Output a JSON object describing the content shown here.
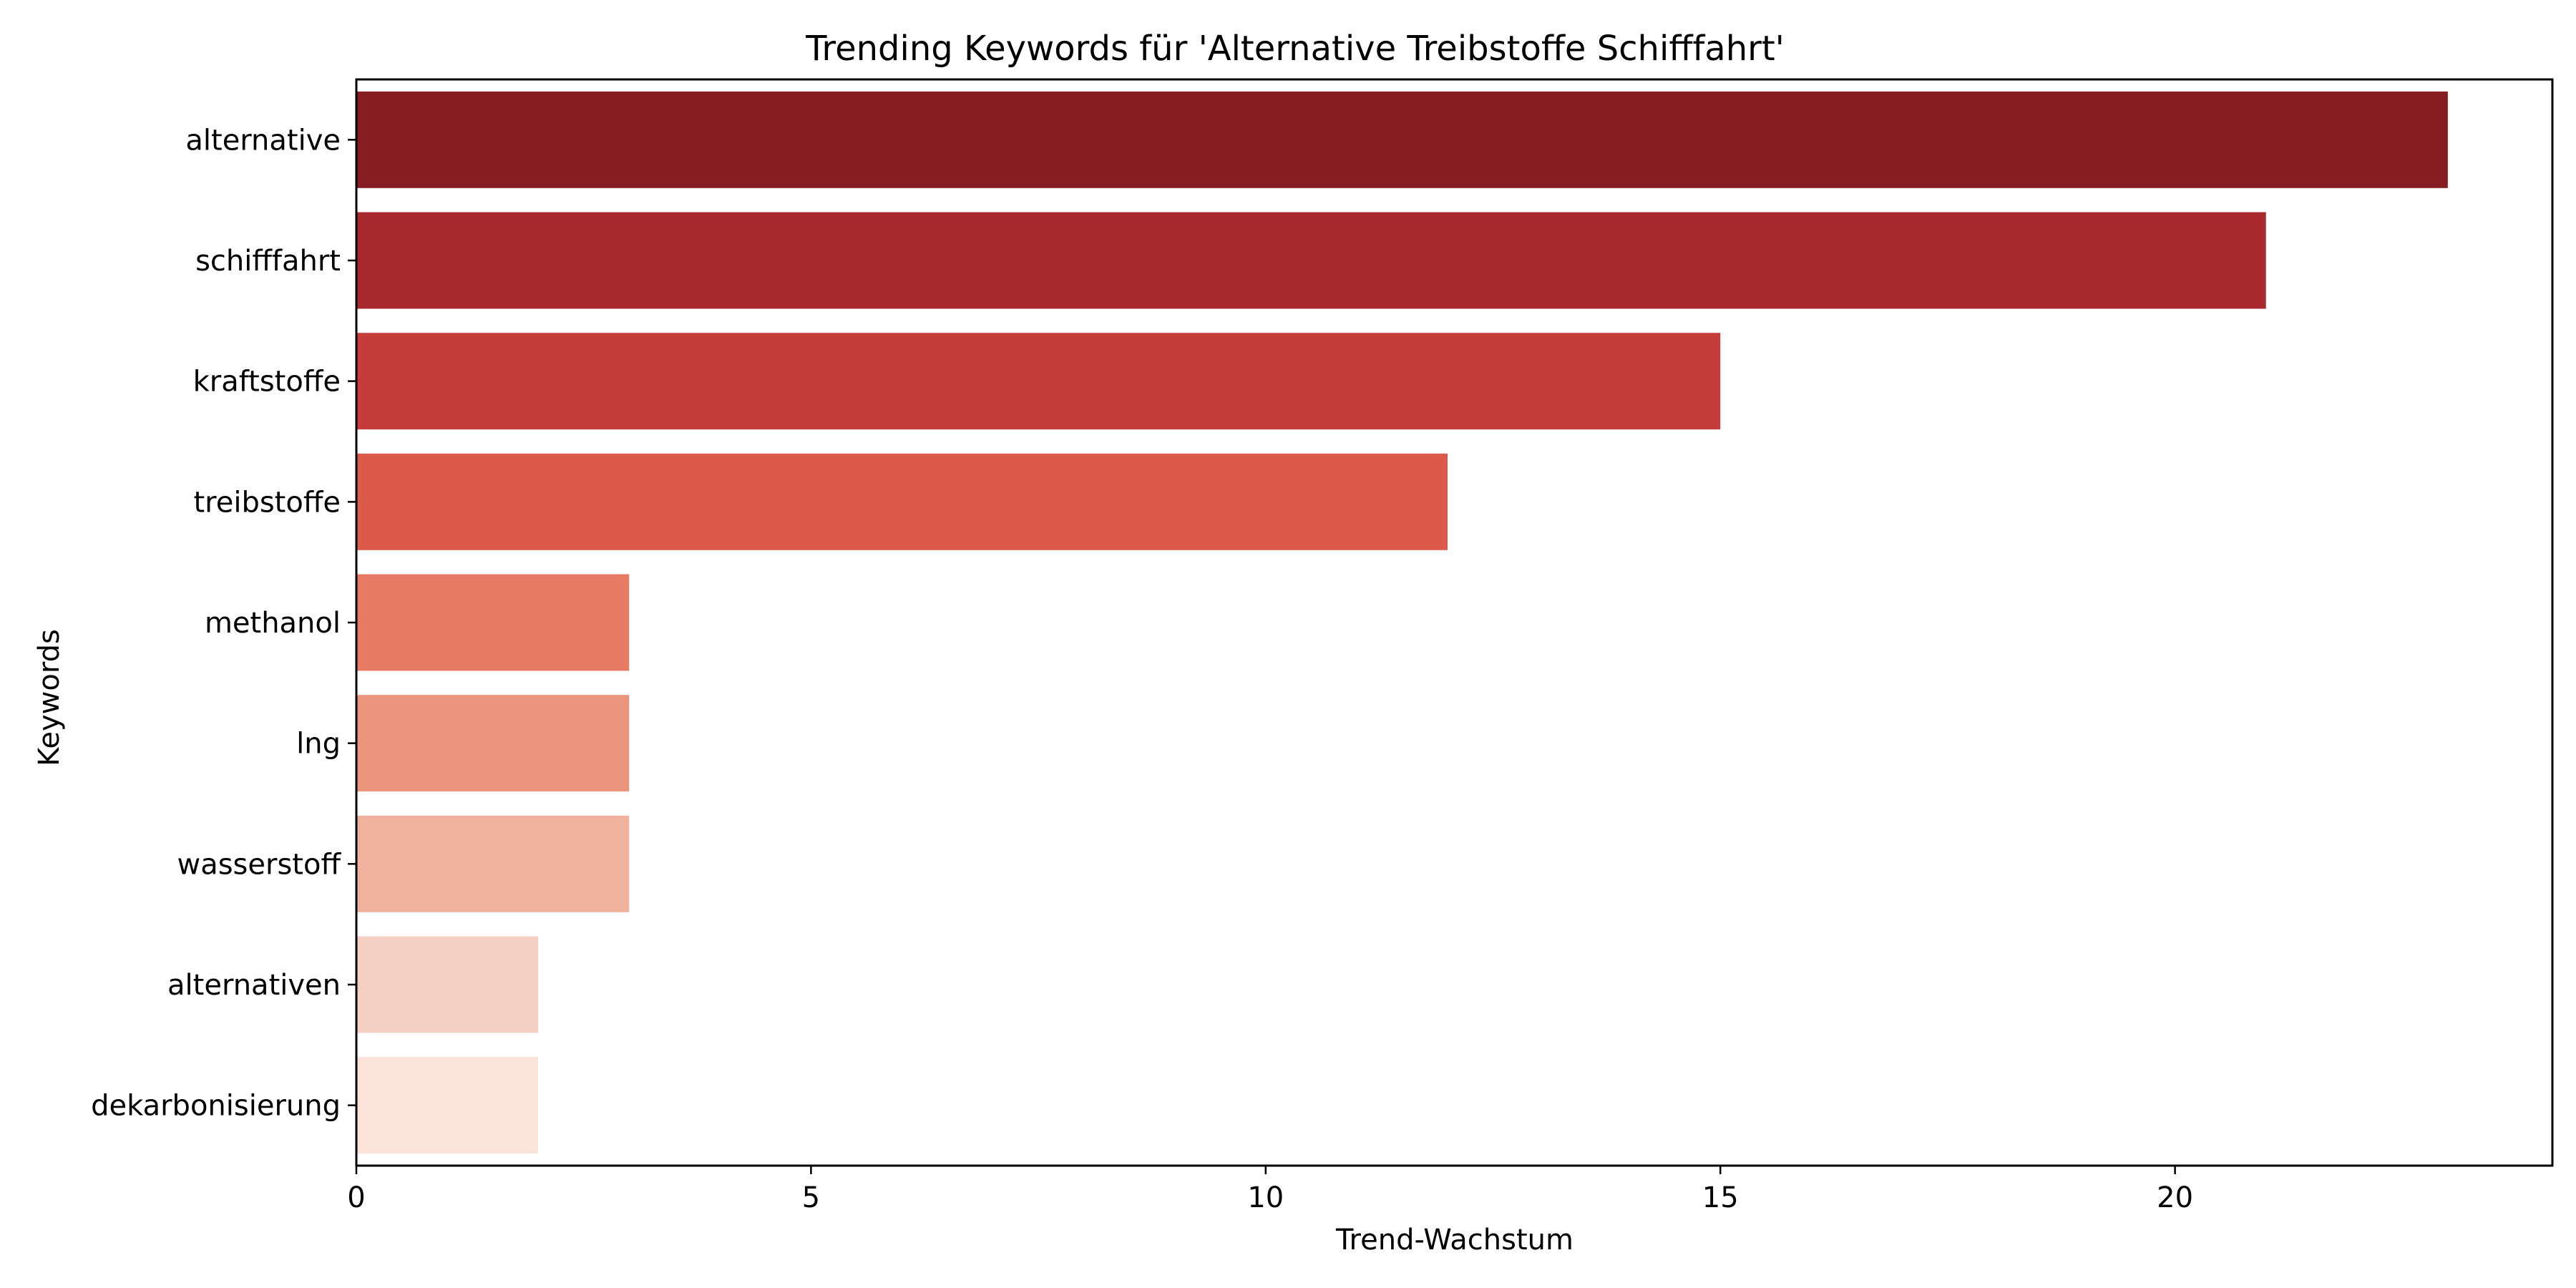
{
  "chart_data": {
    "type": "bar",
    "orientation": "horizontal",
    "title": "Trending Keywords für 'Alternative Treibstoffe Schifffahrt'",
    "xlabel": "Trend-Wachstum",
    "ylabel": "Keywords",
    "categories": [
      "alternative",
      "schifffahrt",
      "kraftstoffe",
      "treibstoffe",
      "methanol",
      "lng",
      "wasserstoff",
      "alternativen",
      "dekarbonisierung"
    ],
    "values": [
      23,
      21,
      15,
      12,
      3,
      3,
      3,
      2,
      2
    ],
    "colors": [
      "#861d22",
      "#a8292e",
      "#c53c3b",
      "#db5a4c",
      "#e77a64",
      "#eb957c",
      "#f0b29d",
      "#f5cfc1",
      "#fae4da"
    ],
    "xlim": [
      0,
      24.15
    ],
    "xticks": [
      0,
      5,
      10,
      15,
      20
    ],
    "grid": false,
    "legend": "none"
  }
}
